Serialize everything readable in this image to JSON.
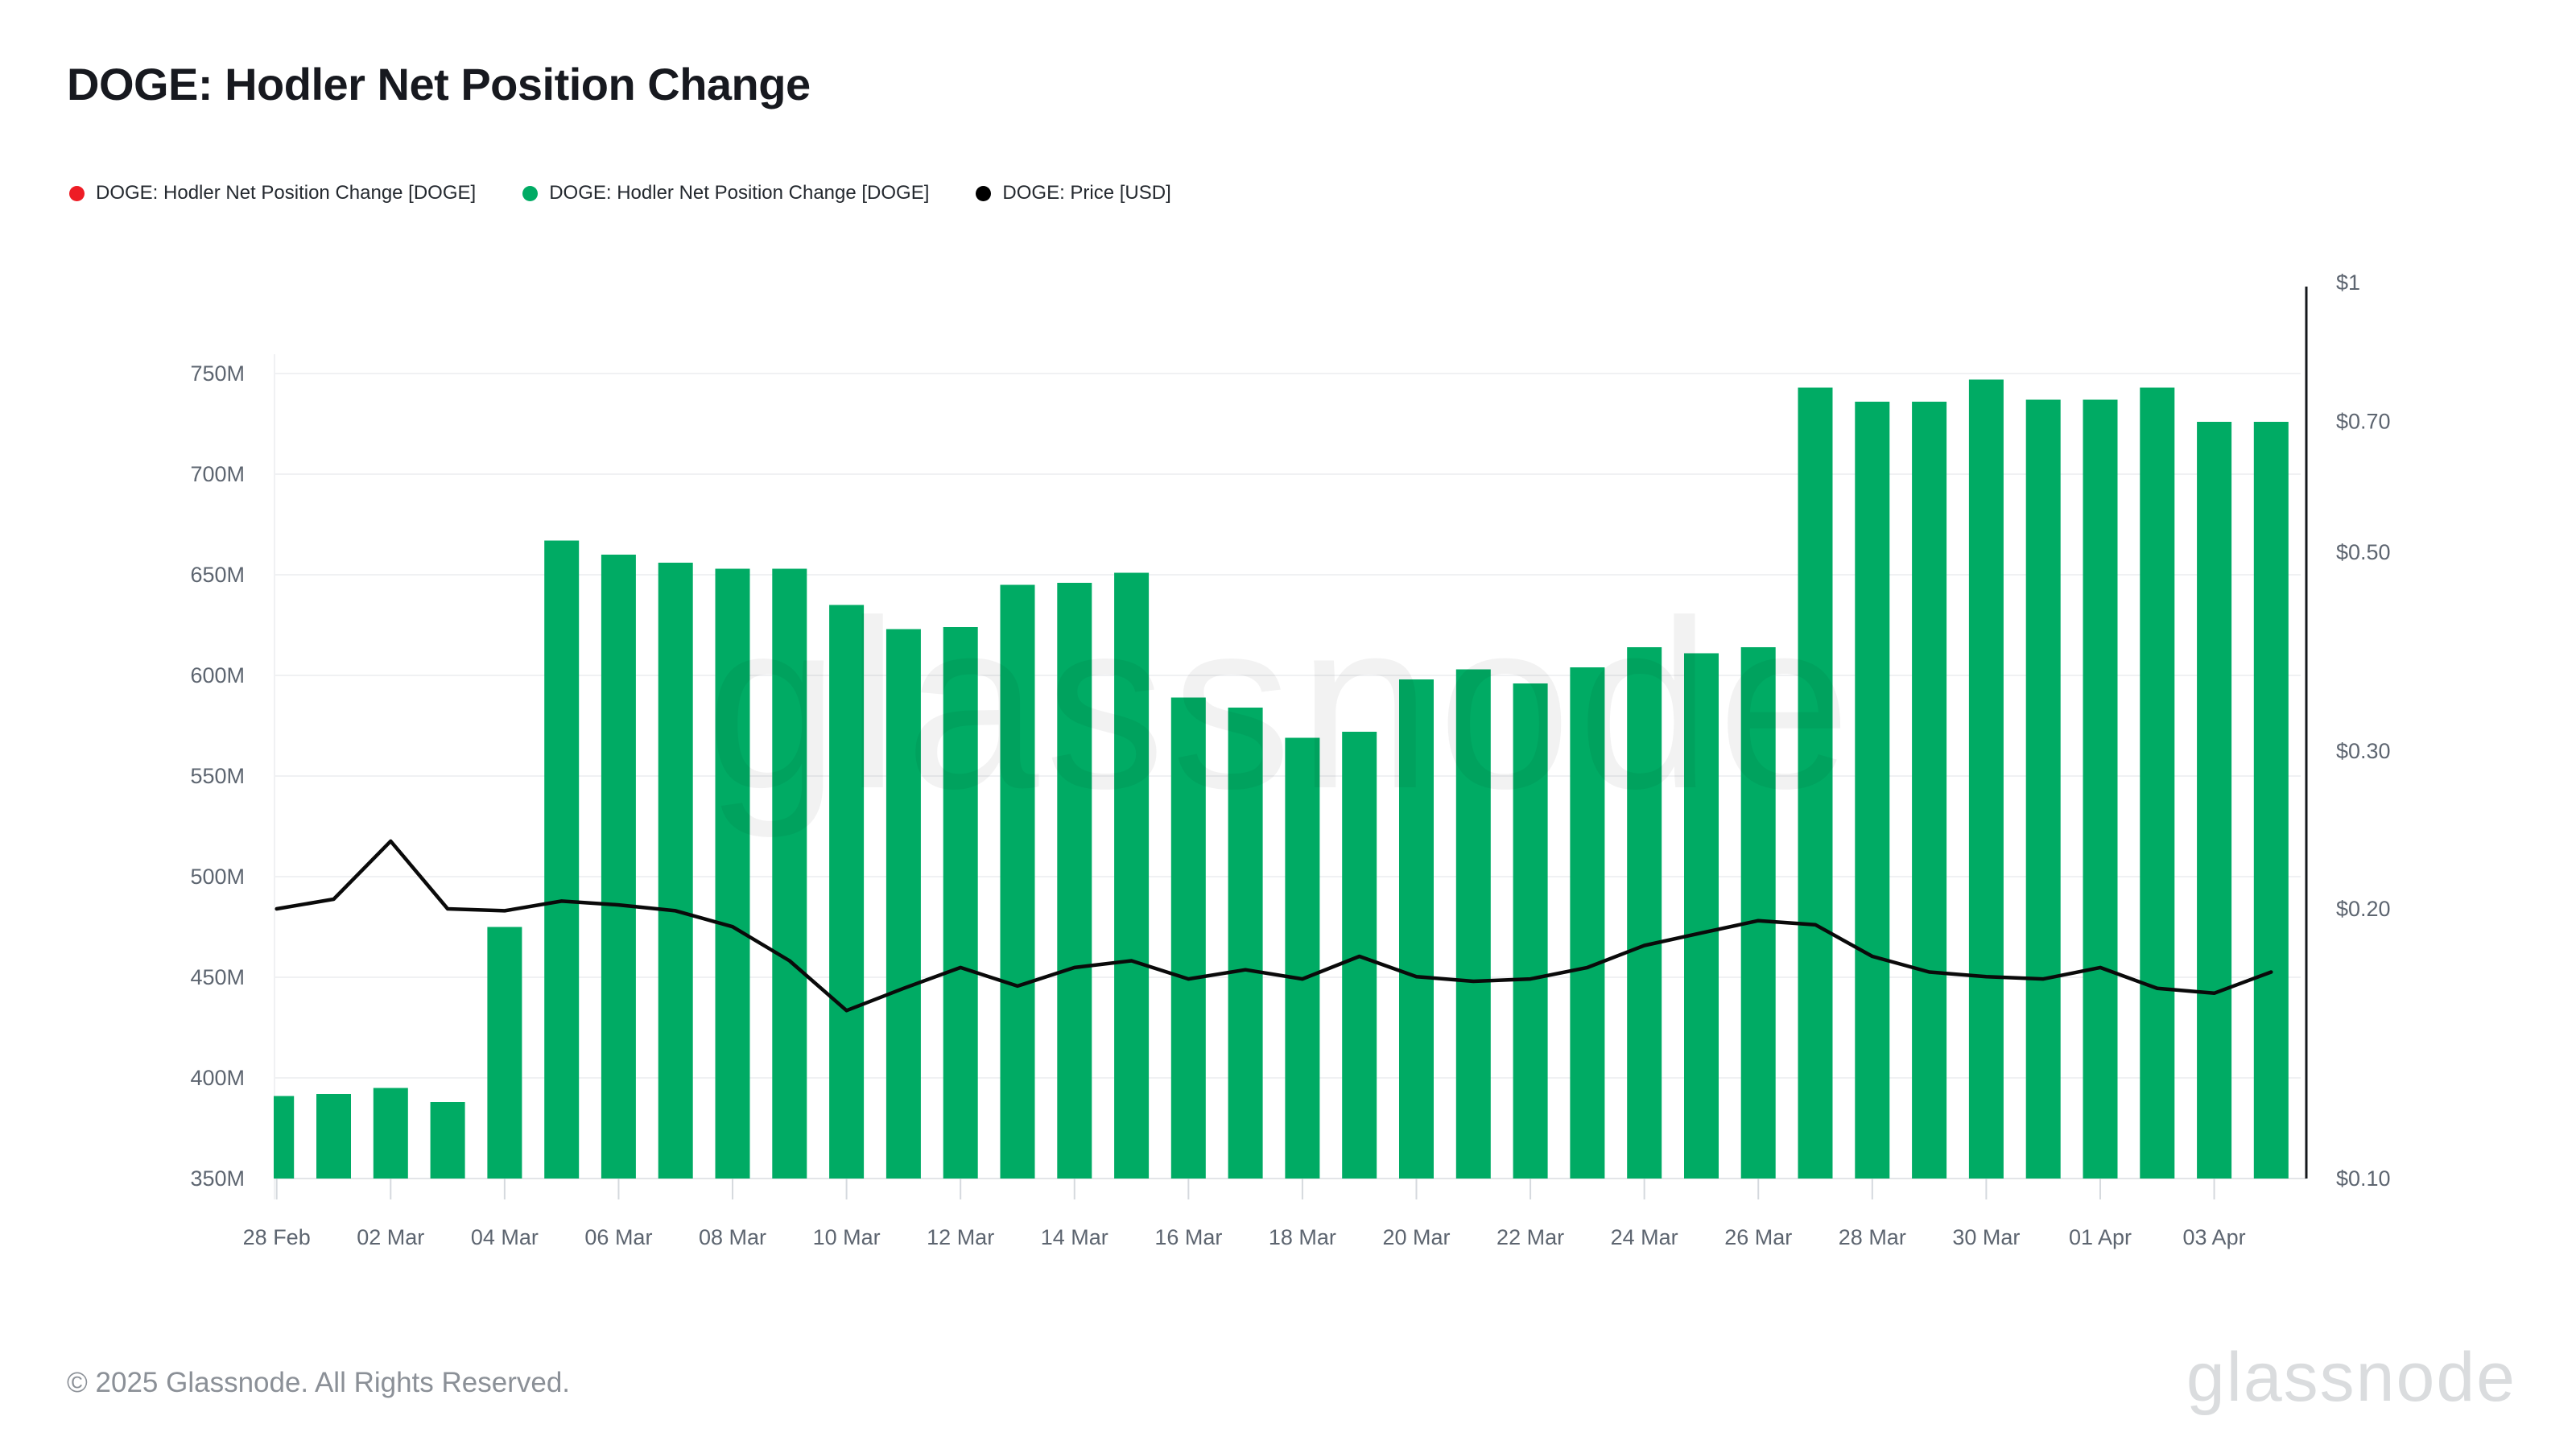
{
  "header": {
    "title": "DOGE: Hodler Net Position Change"
  },
  "legend": [
    {
      "label": "DOGE: Hodler Net Position Change [DOGE]",
      "color": "#ee1c25"
    },
    {
      "label": "DOGE: Hodler Net Position Change [DOGE]",
      "color": "#00ab64"
    },
    {
      "label": "DOGE: Price [USD]",
      "color": "#000000"
    }
  ],
  "watermark": {
    "text": "glassnode"
  },
  "footer": {
    "copyright": "© 2025 Glassnode. All Rights Reserved.",
    "logo_text": "glassnode"
  },
  "colors": {
    "bar_positive": "#00ab64",
    "bar_negative": "#ee1c25",
    "price_line": "#0a0a0a",
    "axis_text": "#5d6570",
    "gridline": "#f0f1f3",
    "baseline": "#e3e5e8",
    "tick_mark": "#d5d9de",
    "right_axis_line": "#15181c"
  },
  "chart_data": {
    "type": "bar",
    "title": "DOGE: Hodler Net Position Change",
    "x": [
      "28 Feb",
      "01 Mar",
      "02 Mar",
      "03 Mar",
      "04 Mar",
      "05 Mar",
      "06 Mar",
      "07 Mar",
      "08 Mar",
      "09 Mar",
      "10 Mar",
      "11 Mar",
      "12 Mar",
      "13 Mar",
      "14 Mar",
      "15 Mar",
      "16 Mar",
      "17 Mar",
      "18 Mar",
      "19 Mar",
      "20 Mar",
      "21 Mar",
      "22 Mar",
      "23 Mar",
      "24 Mar",
      "25 Mar",
      "26 Mar",
      "27 Mar",
      "28 Mar",
      "29 Mar",
      "30 Mar",
      "31 Mar",
      "01 Apr",
      "02 Apr",
      "03 Apr",
      "04 Apr"
    ],
    "x_tick_labels": [
      "28 Feb",
      "02 Mar",
      "04 Mar",
      "06 Mar",
      "08 Mar",
      "10 Mar",
      "12 Mar",
      "14 Mar",
      "16 Mar",
      "18 Mar",
      "20 Mar",
      "22 Mar",
      "24 Mar",
      "26 Mar",
      "28 Mar",
      "30 Mar",
      "01 Apr",
      "03 Apr"
    ],
    "series": [
      {
        "name": "DOGE: Hodler Net Position Change [DOGE]",
        "type": "bar",
        "axis": "left",
        "unit": "DOGE",
        "values_millions": [
          391,
          392,
          395,
          388,
          475,
          667,
          660,
          656,
          653,
          653,
          635,
          623,
          624,
          645,
          646,
          651,
          589,
          584,
          569,
          572,
          598,
          603,
          596,
          604,
          614,
          611,
          614,
          743,
          736,
          736,
          747,
          737,
          737,
          743,
          726,
          726
        ]
      },
      {
        "name": "DOGE: Price [USD]",
        "type": "line",
        "axis": "right",
        "unit": "USD",
        "values_usd": [
          0.2,
          0.205,
          0.238,
          0.2,
          0.199,
          0.204,
          0.202,
          0.199,
          0.191,
          0.175,
          0.154,
          0.163,
          0.172,
          0.164,
          0.172,
          0.175,
          0.167,
          0.171,
          0.167,
          0.177,
          0.168,
          0.166,
          0.167,
          0.172,
          0.182,
          0.188,
          0.194,
          0.192,
          0.177,
          0.17,
          0.168,
          0.167,
          0.172,
          0.163,
          0.161,
          0.17
        ]
      }
    ],
    "left_axis": {
      "ticks": [
        {
          "value": 350,
          "label": "350M"
        },
        {
          "value": 400,
          "label": "400M"
        },
        {
          "value": 450,
          "label": "450M"
        },
        {
          "value": 500,
          "label": "500M"
        },
        {
          "value": 550,
          "label": "550M"
        },
        {
          "value": 600,
          "label": "600M"
        },
        {
          "value": 650,
          "label": "650M"
        },
        {
          "value": 700,
          "label": "700M"
        },
        {
          "value": 750,
          "label": "750M"
        }
      ],
      "scale": "linear",
      "grid": true
    },
    "right_axis": {
      "ticks": [
        {
          "value": 0.1,
          "label": "$0.10"
        },
        {
          "value": 0.2,
          "label": "$0.20"
        },
        {
          "value": 0.3,
          "label": "$0.30"
        },
        {
          "value": 0.5,
          "label": "$0.50"
        },
        {
          "value": 0.7,
          "label": "$0.70"
        },
        {
          "value": 1.0,
          "label": "$1"
        }
      ],
      "scale": "log",
      "grid": false
    },
    "legend_position": "top-left"
  }
}
